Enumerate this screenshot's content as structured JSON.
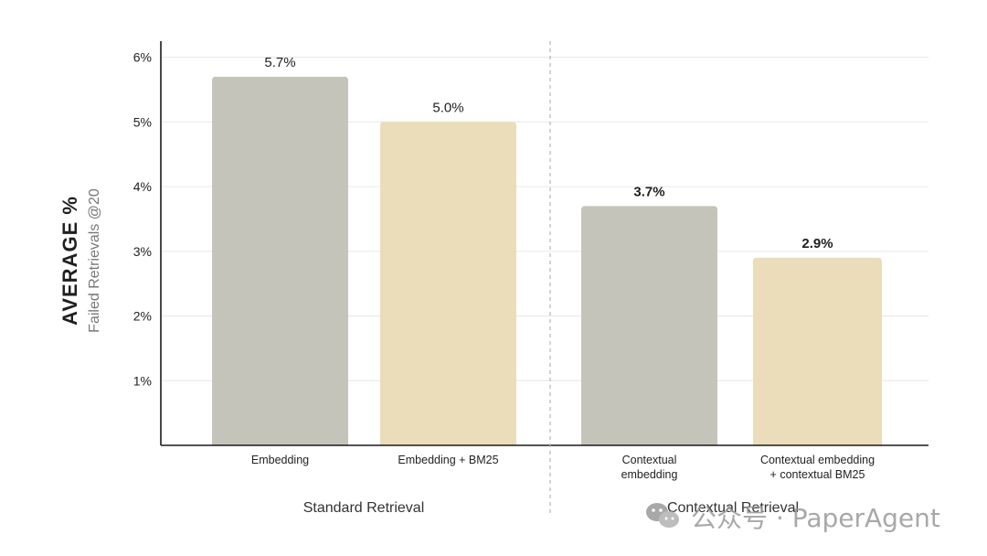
{
  "chart_data": {
    "type": "bar",
    "ylabel": "AVERAGE %",
    "ylabel_sub": "Failed Retrievals @20",
    "ylim": [
      0,
      6.25
    ],
    "yticks": [
      {
        "value": 1,
        "label": "1%"
      },
      {
        "value": 2,
        "label": "2%"
      },
      {
        "value": 3,
        "label": "3%"
      },
      {
        "value": 4,
        "label": "4%"
      },
      {
        "value": 5,
        "label": "5%"
      },
      {
        "value": 6,
        "label": "6%"
      }
    ],
    "grid": true,
    "bars": [
      {
        "category": [
          "Embedding"
        ],
        "value": 5.7,
        "label": "5.7%",
        "group": 0,
        "color": "#c4c4ba",
        "bold": false
      },
      {
        "category": [
          "Embedding + BM25"
        ],
        "value": 5.0,
        "label": "5.0%",
        "group": 0,
        "color": "#ebdcba",
        "bold": false
      },
      {
        "category": [
          "Contextual",
          "embedding"
        ],
        "value": 3.7,
        "label": "3.7%",
        "group": 1,
        "color": "#c4c4ba",
        "bold": true
      },
      {
        "category": [
          "Contextual embedding",
          "+ contextual BM25"
        ],
        "value": 2.9,
        "label": "2.9%",
        "group": 1,
        "color": "#ebdcba",
        "bold": true
      }
    ],
    "groups": [
      "Standard Retrieval",
      "Contextual Retrieval"
    ]
  },
  "watermark": "公众号 · PaperAgent"
}
